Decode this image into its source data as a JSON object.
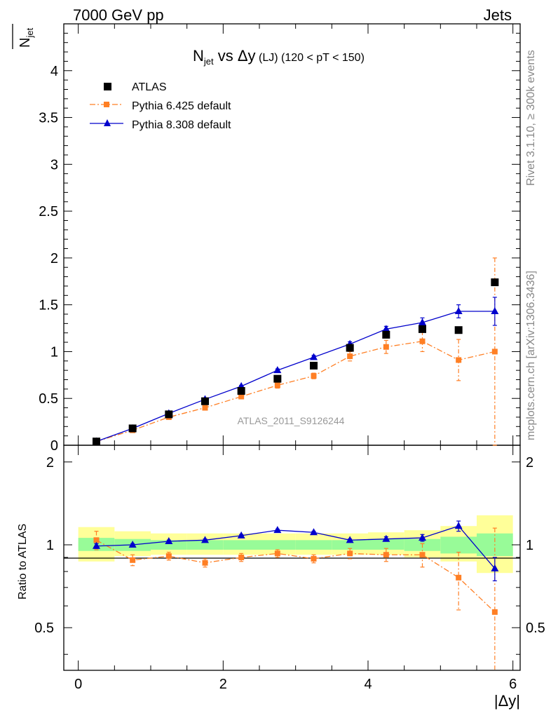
{
  "header": {
    "left": "7000 GeV pp",
    "right": "Jets"
  },
  "side_labels": {
    "rivet": "Rivet 3.1.10, ≥ 300k events",
    "mcplots": "mcplots.cern.ch [arXiv:1306.3436]"
  },
  "chart_data": [
    {
      "type": "scatter",
      "title": "N_jet vs Δy (LJ) (120 < pT < 150)",
      "title_parts": {
        "n": "N",
        "sub": "jet",
        "vs": " vs Δy",
        "lj": " (LJ)",
        "range": " (120 < pT < 150)"
      },
      "ylabel": "N_jet",
      "ylabel_parts": {
        "n": "N",
        "sub": "jet"
      },
      "watermark": "ATLAS_2011_S9126244",
      "xlim": [
        -0.2,
        6.1
      ],
      "ylim": [
        0,
        4.5
      ],
      "yticks": [
        "0",
        "0.5",
        "1",
        "1.5",
        "2",
        "2.5",
        "3",
        "3.5",
        "4"
      ],
      "legend_position": "top-left",
      "series": [
        {
          "name": "ATLAS",
          "color": "#000000",
          "marker": "square",
          "x": [
            0.25,
            0.75,
            1.25,
            1.75,
            2.25,
            2.75,
            3.25,
            3.75,
            4.25,
            4.75,
            5.25,
            5.75
          ],
          "y": [
            0.04,
            0.18,
            0.33,
            0.47,
            0.58,
            0.71,
            0.85,
            1.04,
            1.18,
            1.24,
            1.23,
            1.74
          ]
        },
        {
          "name": "Pythia 6.425 default",
          "color": "#ff7f24",
          "marker": "square",
          "linestyle": "dashdot",
          "x": [
            0.25,
            0.75,
            1.25,
            1.75,
            2.25,
            2.75,
            3.25,
            3.75,
            4.25,
            4.75,
            5.25,
            5.75
          ],
          "y": [
            0.04,
            0.16,
            0.3,
            0.4,
            0.52,
            0.64,
            0.74,
            0.95,
            1.05,
            1.11,
            0.91,
            1.0
          ],
          "err": [
            0.005,
            0.01,
            0.01,
            0.02,
            0.02,
            0.03,
            0.03,
            0.05,
            0.07,
            0.11,
            0.22,
            1.0
          ]
        },
        {
          "name": "Pythia 8.308 default",
          "color": "#0000cc",
          "marker": "triangle",
          "linestyle": "solid",
          "x": [
            0.25,
            0.75,
            1.25,
            1.75,
            2.25,
            2.75,
            3.25,
            3.75,
            4.25,
            4.75,
            5.25,
            5.75
          ],
          "y": [
            0.04,
            0.18,
            0.34,
            0.49,
            0.63,
            0.8,
            0.94,
            1.08,
            1.24,
            1.31,
            1.43,
            1.43
          ],
          "err": [
            0.003,
            0.005,
            0.007,
            0.01,
            0.01,
            0.015,
            0.02,
            0.025,
            0.03,
            0.05,
            0.07,
            0.15
          ]
        }
      ]
    },
    {
      "type": "scatter",
      "title": "",
      "xlabel": "|Δy|",
      "ylabel": "Ratio to ATLAS",
      "xlim": [
        -0.2,
        6.1
      ],
      "ylim": [
        0.35,
        2.3
      ],
      "xticks": [
        "0",
        "2",
        "4",
        "6"
      ],
      "yticks": [
        "0.5",
        "1",
        "2"
      ],
      "bands": {
        "inner_color": "#98fb98",
        "outer_color": "#ffff99",
        "bins": [
          [
            0,
            0.5
          ],
          [
            0.5,
            1.0
          ],
          [
            1.0,
            1.5
          ],
          [
            1.5,
            2.0
          ],
          [
            2.0,
            2.5
          ],
          [
            2.5,
            3.0
          ],
          [
            3.0,
            3.5
          ],
          [
            3.5,
            4.0
          ],
          [
            4.0,
            4.5
          ],
          [
            4.5,
            5.0
          ],
          [
            5.0,
            5.5
          ],
          [
            5.5,
            6.0
          ]
        ],
        "inner": [
          [
            0.95,
            1.06
          ],
          [
            0.95,
            1.05
          ],
          [
            0.96,
            1.04
          ],
          [
            0.96,
            1.04
          ],
          [
            0.96,
            1.04
          ],
          [
            0.96,
            1.04
          ],
          [
            0.96,
            1.04
          ],
          [
            0.96,
            1.04
          ],
          [
            0.96,
            1.05
          ],
          [
            0.95,
            1.05
          ],
          [
            0.93,
            1.07
          ],
          [
            0.91,
            1.1
          ]
        ],
        "outer": [
          [
            0.87,
            1.16
          ],
          [
            0.91,
            1.12
          ],
          [
            0.92,
            1.1
          ],
          [
            0.92,
            1.1
          ],
          [
            0.92,
            1.1
          ],
          [
            0.92,
            1.1
          ],
          [
            0.92,
            1.1
          ],
          [
            0.92,
            1.1
          ],
          [
            0.92,
            1.11
          ],
          [
            0.9,
            1.13
          ],
          [
            0.87,
            1.17
          ],
          [
            0.79,
            1.28
          ]
        ]
      },
      "series": [
        {
          "name": "Pythia 6.425 default",
          "color": "#ff7f24",
          "marker": "square",
          "linestyle": "dashdot",
          "x": [
            0.25,
            0.75,
            1.25,
            1.75,
            2.25,
            2.75,
            3.25,
            3.75,
            4.25,
            4.75,
            5.25,
            5.75
          ],
          "y": [
            1.04,
            0.88,
            0.91,
            0.86,
            0.9,
            0.93,
            0.89,
            0.93,
            0.92,
            0.92,
            0.76,
            0.57
          ],
          "err": [
            0.08,
            0.04,
            0.03,
            0.03,
            0.03,
            0.03,
            0.03,
            0.04,
            0.05,
            0.09,
            0.18,
            0.58
          ]
        },
        {
          "name": "Pythia 8.308 default",
          "color": "#0000cc",
          "marker": "triangle",
          "linestyle": "solid",
          "x": [
            0.25,
            0.75,
            1.25,
            1.75,
            2.25,
            2.75,
            3.25,
            3.75,
            4.25,
            4.75,
            5.25,
            5.75
          ],
          "y": [
            0.99,
            1.0,
            1.03,
            1.04,
            1.08,
            1.13,
            1.11,
            1.04,
            1.05,
            1.06,
            1.17,
            0.82
          ],
          "err": [
            0.02,
            0.01,
            0.01,
            0.01,
            0.01,
            0.01,
            0.01,
            0.01,
            0.02,
            0.03,
            0.05,
            0.08
          ]
        }
      ]
    }
  ]
}
